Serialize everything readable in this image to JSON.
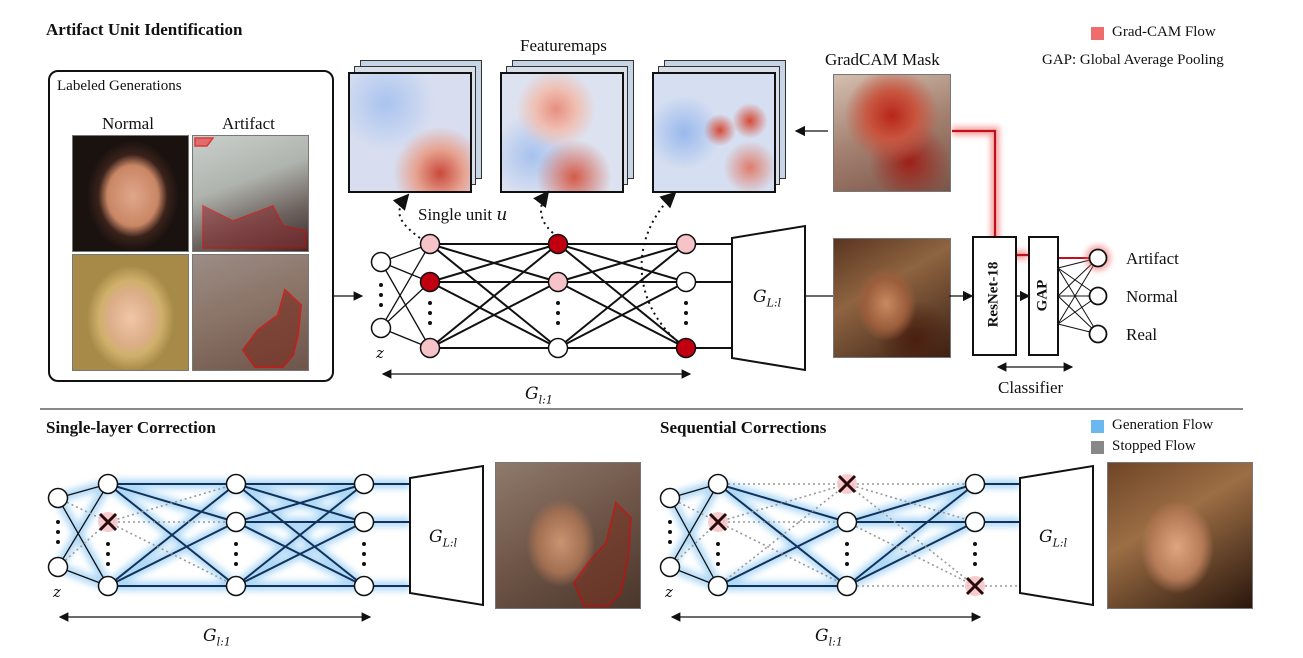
{
  "top": {
    "title": "Artifact Unit Identification",
    "labeled_generations": "Labeled Generations",
    "col_normal": "Normal",
    "col_artifact": "Artifact",
    "featuremaps": "Featuremaps",
    "gradcam_mask": "GradCAM Mask",
    "single_unit": "Single unit",
    "single_unit_var": "u",
    "z": "z",
    "g_left": "G",
    "g_left_sub": "l:1",
    "g_right": "G",
    "g_right_sub": "L:l",
    "resnet": "ResNet-18",
    "gap": "GAP",
    "classifier": "Classifier",
    "outputs": [
      "Artifact",
      "Normal",
      "Real"
    ],
    "legend_gradcam": "Grad-CAM Flow",
    "legend_gap": "GAP: Global Average Pooling"
  },
  "bottom_left": {
    "title": "Single-layer Correction",
    "z": "z",
    "g_left": "G",
    "g_left_sub": "l:1",
    "g_right": "G",
    "g_right_sub": "L:l"
  },
  "bottom_right": {
    "title": "Sequential Corrections",
    "z": "z",
    "g_left": "G",
    "g_left_sub": "l:1",
    "g_right": "G",
    "g_right_sub": "L:l",
    "legend_generation": "Generation Flow",
    "legend_stopped": "Stopped Flow"
  },
  "colors": {
    "gradcam": "#f06b6b",
    "generation": "#6ab8ef",
    "stopped": "#888888",
    "unit_dark_red": "#c00010",
    "unit_light_red": "#f6c3c8"
  }
}
